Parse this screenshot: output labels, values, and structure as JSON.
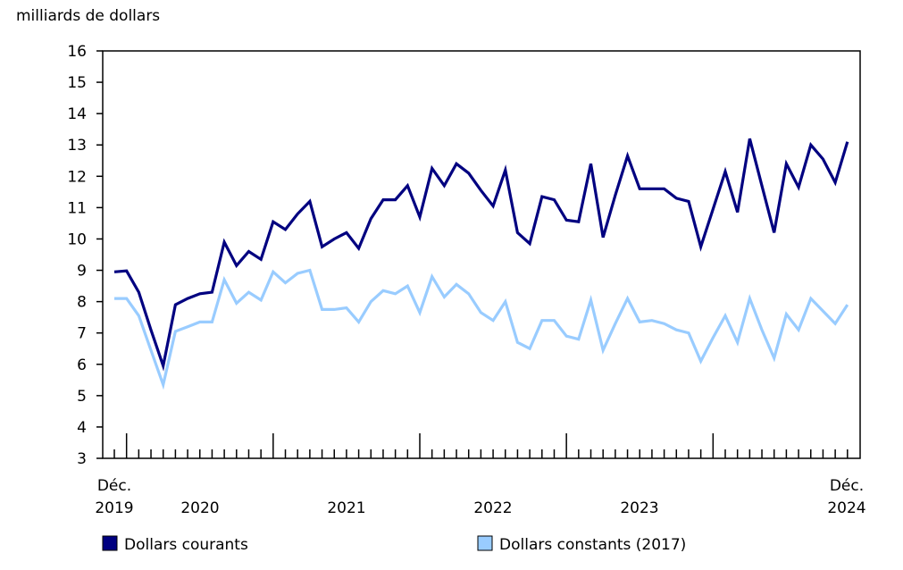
{
  "chart_data": {
    "type": "line",
    "ylabel": "milliards de dollars",
    "ylim": [
      3,
      16
    ],
    "yticks": [
      3,
      4,
      5,
      6,
      7,
      8,
      9,
      10,
      11,
      12,
      13,
      14,
      15,
      16
    ],
    "grid": false,
    "legend_placement": "bottom",
    "x_start_label": [
      "Déc.",
      "2019"
    ],
    "x_end_label": [
      "Déc.",
      "2024"
    ],
    "year_labels": [
      "2020",
      "2021",
      "2022",
      "2023"
    ],
    "x_range": [
      "2019-12",
      "2024-12"
    ],
    "series": [
      {
        "name": "Dollars courants",
        "color": "#000080",
        "values": [
          8.95,
          8.98,
          8.3,
          7.1,
          5.95,
          7.9,
          8.1,
          8.25,
          8.3,
          9.9,
          9.15,
          9.6,
          9.35,
          10.55,
          10.3,
          10.8,
          11.2,
          9.75,
          10.0,
          10.2,
          9.7,
          10.65,
          11.25,
          11.25,
          11.7,
          10.7,
          12.25,
          11.7,
          12.4,
          12.1,
          11.55,
          11.05,
          12.2,
          10.2,
          9.85,
          11.35,
          11.25,
          10.6,
          10.55,
          12.4,
          10.05,
          11.4,
          12.65,
          11.6,
          11.6,
          11.6,
          11.3,
          11.2,
          9.75,
          10.95,
          12.15,
          10.85,
          13.2,
          11.7,
          10.2,
          12.4,
          11.65,
          13.0,
          12.55,
          11.8,
          13.1
        ]
      },
      {
        "name": "Dollars constants (2017)",
        "color": "#99ccff",
        "values": [
          8.1,
          8.1,
          7.55,
          6.45,
          5.35,
          7.05,
          7.2,
          7.35,
          7.35,
          8.7,
          7.95,
          8.3,
          8.05,
          8.95,
          8.6,
          8.9,
          9.0,
          7.75,
          7.75,
          7.8,
          7.35,
          8.0,
          8.35,
          8.25,
          8.5,
          7.65,
          8.8,
          8.15,
          8.55,
          8.25,
          7.65,
          7.4,
          8.0,
          6.7,
          6.5,
          7.4,
          7.4,
          6.9,
          6.8,
          8.05,
          6.45,
          7.3,
          8.1,
          7.35,
          7.4,
          7.3,
          7.1,
          7.0,
          6.1,
          6.85,
          7.55,
          6.7,
          8.1,
          7.1,
          6.2,
          7.6,
          7.1,
          8.1,
          7.7,
          7.3,
          7.9
        ]
      }
    ]
  }
}
